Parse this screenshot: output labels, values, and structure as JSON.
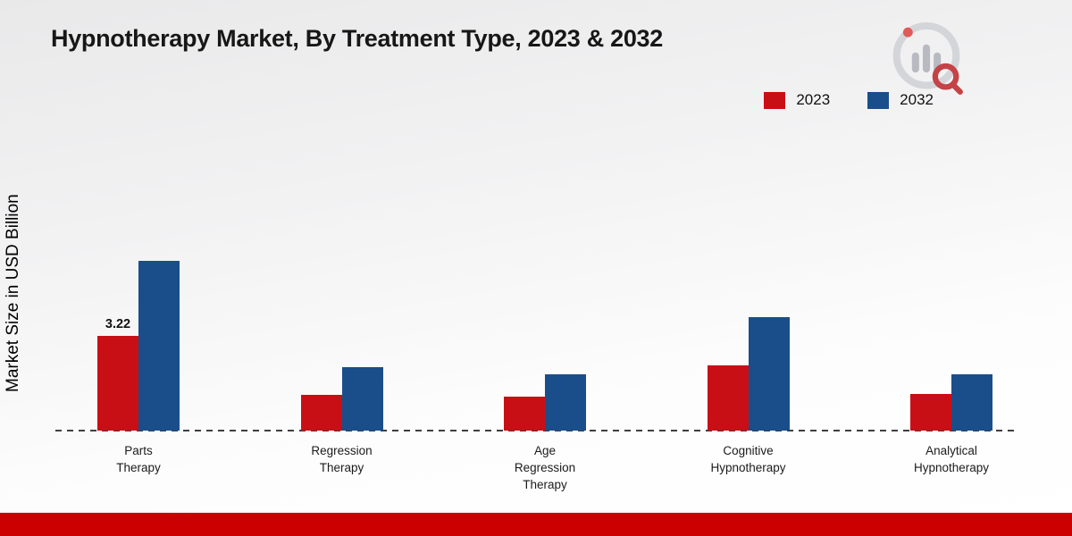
{
  "page": {
    "footer_color": "#cc0001"
  },
  "chart_data": {
    "type": "bar",
    "title": "Hypnotherapy Market, By Treatment Type, 2023 & 2032",
    "xlabel": "",
    "ylabel": "Market Size in USD Billion",
    "ylim": [
      0,
      6
    ],
    "grid": false,
    "legend_position": "top-right",
    "categories": [
      {
        "id": "parts-therapy",
        "label_lines": [
          "Parts",
          "Therapy"
        ]
      },
      {
        "id": "regression-therapy",
        "label_lines": [
          "Regression",
          "Therapy"
        ]
      },
      {
        "id": "age-regression-therapy",
        "label_lines": [
          "Age",
          "Regression",
          "Therapy"
        ]
      },
      {
        "id": "cognitive-hypnotherapy",
        "label_lines": [
          "Cognitive",
          "Hypnotherapy"
        ]
      },
      {
        "id": "analytical-hypnotherapy",
        "label_lines": [
          "Analytical",
          "Hypnotherapy"
        ]
      }
    ],
    "series": [
      {
        "name": "2023",
        "color": "#c90f16",
        "values": [
          3.22,
          1.2,
          1.15,
          2.2,
          1.25
        ]
      },
      {
        "name": "2032",
        "color": "#1a4e8a",
        "values": [
          5.75,
          2.15,
          1.9,
          3.85,
          1.9
        ]
      }
    ],
    "annotations": [
      {
        "series_index": 0,
        "category_index": 0,
        "text": "3.22"
      }
    ]
  }
}
